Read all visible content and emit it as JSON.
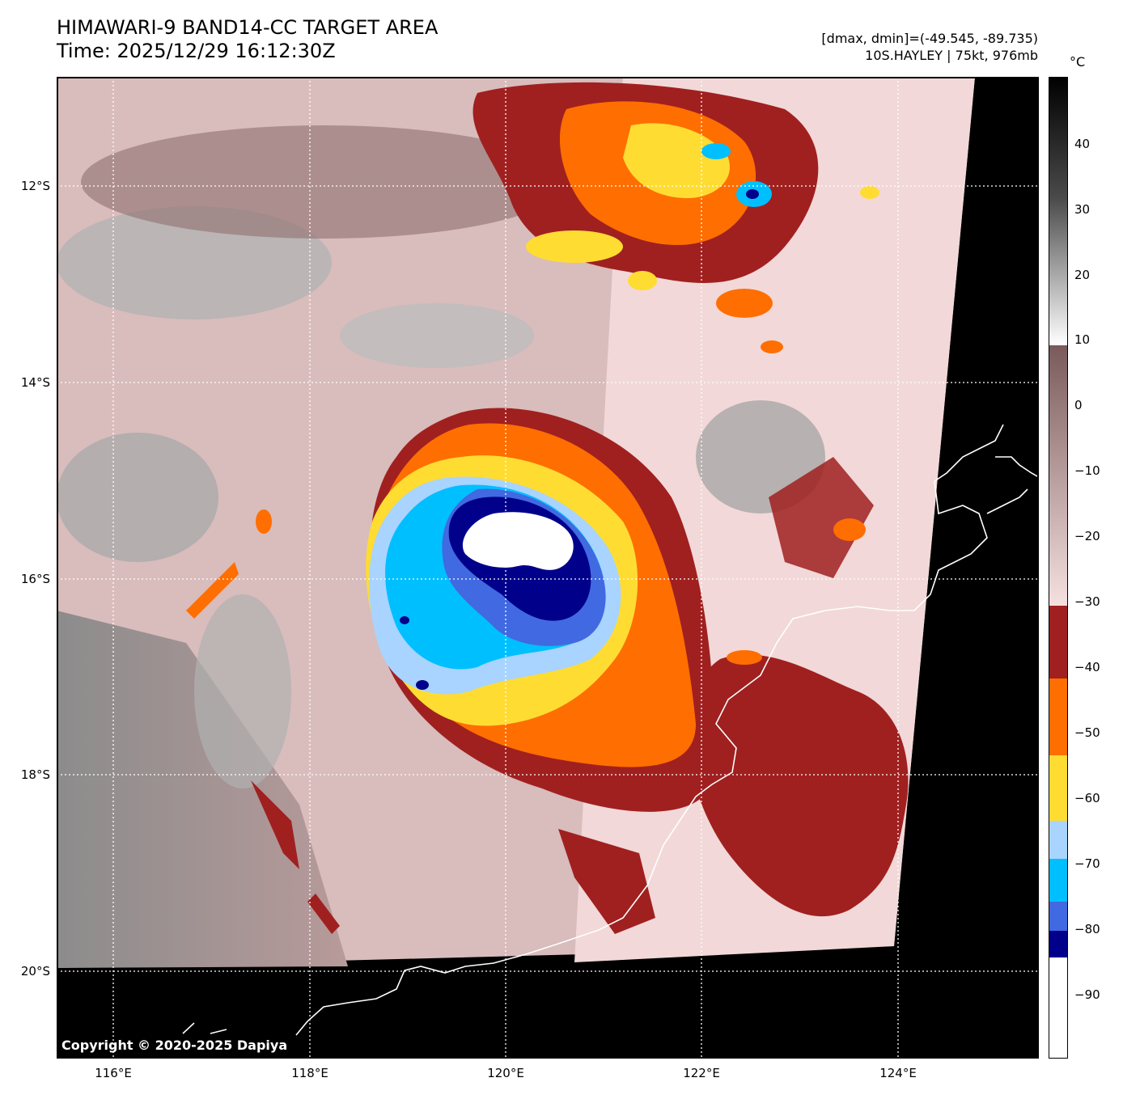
{
  "header": {
    "title_line1": "HIMAWARI-9 BAND14-CC TARGET AREA",
    "title_line2": "Time: 2025/12/29 16:12:30Z",
    "info_line1": "[dmax, dmin]=(-49.545, -89.735)",
    "info_line2": "10S.HAYLEY | 75kt, 976mb"
  },
  "map": {
    "lat_labels": [
      "12°S",
      "14°S",
      "16°S",
      "18°S",
      "20°S"
    ],
    "lon_labels": [
      "116°E",
      "118°E",
      "120°E",
      "122°E",
      "124°E"
    ],
    "copyright": "Copyright © 2020-2025 Dapiya",
    "colors": {
      "background_black": "#000000",
      "cloud_pink": "#f2d8d8",
      "cloud_brown": "#8a6868",
      "cloud_gray": "#9a9a9a",
      "coast": "#ffffff"
    }
  },
  "colorbar": {
    "unit": "°C",
    "tick_labels": [
      "40",
      "30",
      "20",
      "10",
      "0",
      "−10",
      "−20",
      "−30",
      "−40",
      "−50",
      "−60",
      "−70",
      "−80",
      "−90"
    ],
    "bands": [
      {
        "from": 10,
        "to": 48,
        "color": "gray-scale"
      },
      {
        "from": -30,
        "to": 10,
        "color": "#7a5a5a-to-#f5e0e0"
      },
      {
        "from": -41,
        "to": -30,
        "color": "#a02020"
      },
      {
        "from": -53,
        "to": -41,
        "color": "#ff6e00"
      },
      {
        "from": -63,
        "to": -53,
        "color": "#ffdc32"
      },
      {
        "from": -71,
        "to": -63,
        "color": "#a8d4ff"
      },
      {
        "from": -78,
        "to": -71,
        "color": "#00bfff"
      },
      {
        "from": -82,
        "to": -78,
        "color": "#4169e1"
      },
      {
        "from": -86,
        "to": -82,
        "color": "#00008b"
      },
      {
        "from": -102,
        "to": -86,
        "color": "#ffffff"
      }
    ]
  }
}
